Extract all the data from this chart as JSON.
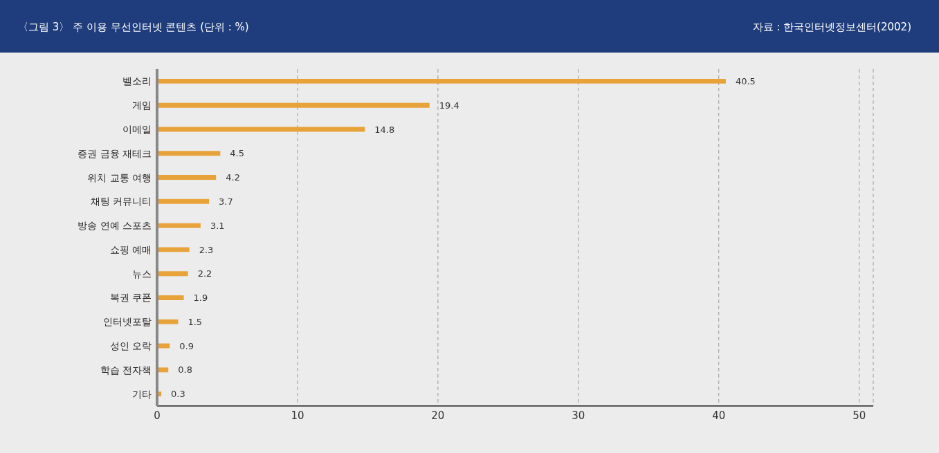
{
  "chart_data": {
    "type": "bar",
    "orientation": "horizontal",
    "title": "〈그림 3〉 주 이용 무선인터넷 콘텐츠 (단위 : %)",
    "annotations": [
      "자료 : 한국인터넷정보센터(2002)"
    ],
    "categories": [
      "벨소리",
      "게임",
      "이메일",
      "증권 금융 재테크",
      "위치 교통 여행",
      "채팅 커뮤니티",
      "방송 연예 스포츠",
      "쇼핑 예매",
      "뉴스",
      "복권 쿠폰",
      "인터넷포탈",
      "성인 오락",
      "학습 전자책",
      "기타"
    ],
    "values": [
      40.5,
      19.4,
      14.8,
      4.5,
      4.2,
      3.7,
      3.1,
      2.3,
      2.2,
      1.9,
      1.5,
      0.9,
      0.8,
      0.3
    ],
    "color": "#e8a23a",
    "xlim": [
      0,
      51
    ],
    "xticks": [
      0,
      10,
      20,
      30,
      40,
      50
    ],
    "grid": "x",
    "data_labels": true
  }
}
